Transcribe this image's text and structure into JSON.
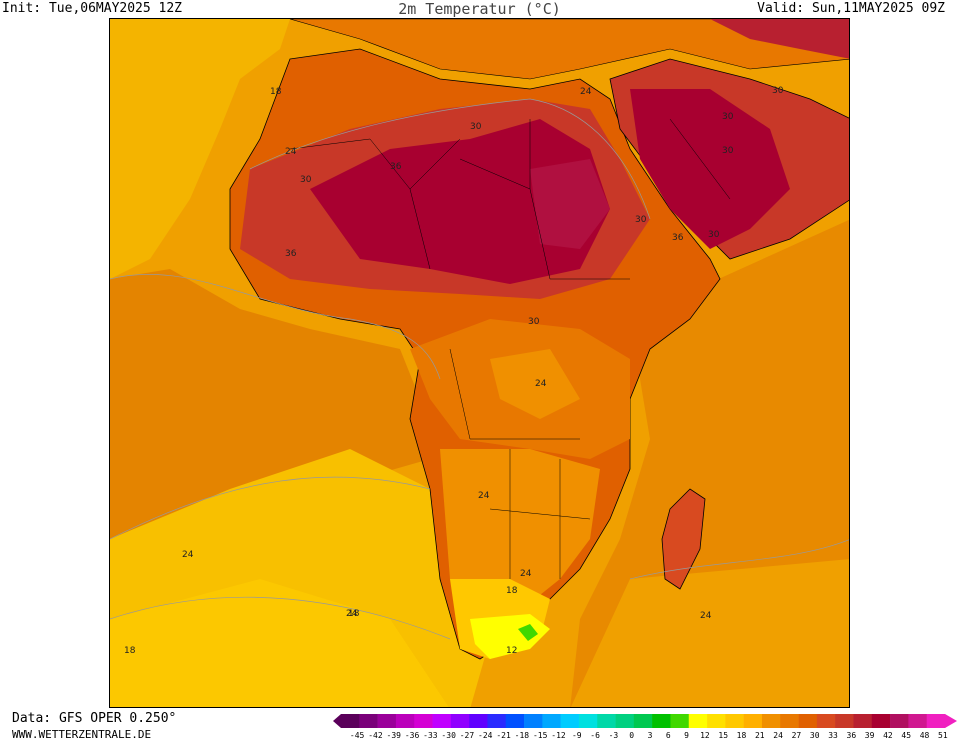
{
  "header": {
    "init": "Init: Tue,06MAY2025 12Z",
    "title": "2m Temperatur (°C)",
    "valid": "Valid: Sun,11MAY2025 09Z"
  },
  "footer": {
    "data_source": "Data: GFS OPER 0.250°",
    "website": "WWW.WETTERZENTRALE.DE"
  },
  "map": {
    "variable": "2m temperature",
    "unit": "°C",
    "region": "Africa",
    "contour_labels": [
      "18",
      "24",
      "30",
      "36",
      "24",
      "30",
      "36",
      "30",
      "30",
      "30",
      "30",
      "36",
      "30",
      "30",
      "24",
      "24",
      "24",
      "24",
      "24",
      "18",
      "18",
      "12",
      "24",
      "18"
    ]
  },
  "scale": {
    "ticks": [
      "-45",
      "-42",
      "-39",
      "-36",
      "-33",
      "-30",
      "-27",
      "-24",
      "-21",
      "-18",
      "-15",
      "-12",
      "-9",
      "-6",
      "-3",
      "0",
      "3",
      "6",
      "9",
      "12",
      "15",
      "18",
      "21",
      "24",
      "27",
      "30",
      "33",
      "36",
      "39",
      "42",
      "45",
      "48",
      "51"
    ],
    "colors": [
      "#5a005a",
      "#7a007a",
      "#9a009a",
      "#bb00bb",
      "#d400d4",
      "#c000ff",
      "#9000ff",
      "#6000ff",
      "#2a2aff",
      "#0050ff",
      "#0080ff",
      "#00a8ff",
      "#00ccff",
      "#00e0e0",
      "#00d8a8",
      "#00d080",
      "#00c850",
      "#00c000",
      "#40d800",
      "#ffff00",
      "#ffe000",
      "#ffc800",
      "#ffb000",
      "#f09000",
      "#e87800",
      "#e06000",
      "#d84a20",
      "#c83828",
      "#b82030",
      "#a80030",
      "#b01060",
      "#d01890",
      "#f020c0"
    ]
  }
}
